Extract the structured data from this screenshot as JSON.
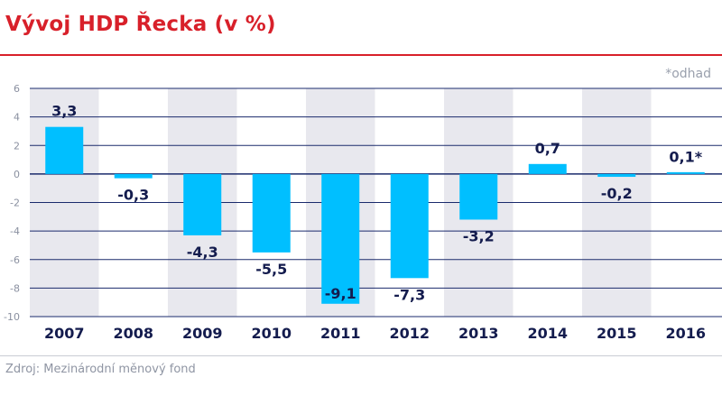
{
  "title": "Vývoj HDP Řecka (v %)",
  "note": "*odhad",
  "source": "Zdroj: Mezinárodní měnový fond",
  "colors": {
    "title": "#d8202a",
    "bar": "#00bfff",
    "band": "#e8e8ee",
    "grid": "#1a2a6c",
    "text": "#141c4e"
  },
  "chart_data": {
    "type": "bar",
    "title": "Vývoj HDP Řecka (v %)",
    "categories": [
      "2007",
      "2008",
      "2009",
      "2010",
      "2011",
      "2012",
      "2013",
      "2014",
      "2015",
      "2016"
    ],
    "values": [
      3.3,
      -0.3,
      -4.3,
      -5.5,
      -9.1,
      -7.3,
      -3.2,
      0.7,
      -0.2,
      0.1
    ],
    "labels": [
      "3,3",
      "-0,3",
      "-4,3",
      "-5,5",
      "-9,1",
      "-7,3",
      "-3,2",
      "0,7",
      "-0,2",
      "0,1*"
    ],
    "yticks": [
      "6",
      "4",
      "2",
      "0",
      "-2",
      "-4",
      "-6",
      "-8",
      "-10"
    ],
    "ytick_values": [
      6,
      4,
      2,
      0,
      -2,
      -4,
      -6,
      -8,
      -10
    ],
    "ylim": [
      -10,
      6
    ],
    "xlabel": "",
    "ylabel": "",
    "grid": true,
    "alternating_bands": true
  }
}
